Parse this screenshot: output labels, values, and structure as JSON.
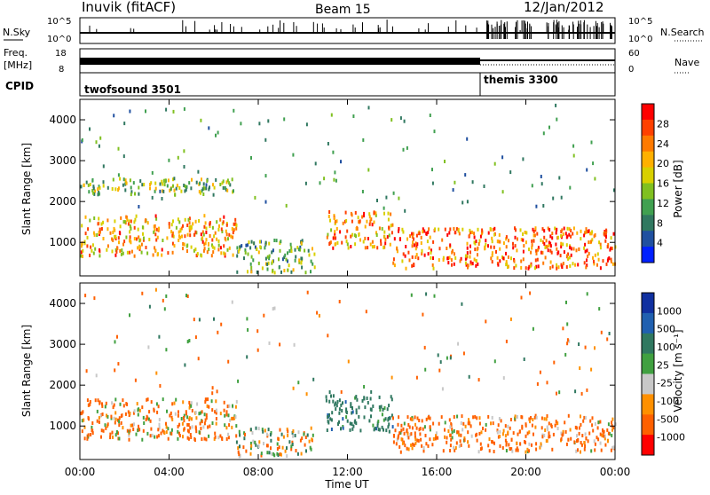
{
  "header": {
    "station": "Inuvik (fitACF)",
    "beam": "Beam 15",
    "date": "12/Jan/2012"
  },
  "strips": {
    "nsky": {
      "left_label": "N.Sky",
      "right_label": "N.Search",
      "left_ticks": [
        "10^5",
        "10^0"
      ],
      "right_ticks": [
        "10^5",
        "10^0"
      ]
    },
    "freq": {
      "left_label": "Freq.",
      "unit": "[MHz]",
      "right_label": "Nave",
      "left_ticks": [
        "18",
        "8"
      ],
      "right_ticks": [
        "60",
        "0"
      ]
    },
    "cpid": {
      "label": "CPID",
      "segments": [
        {
          "name": "twofsound 3501",
          "start_hour": 0,
          "end_hour": 18
        },
        {
          "name": "themis 3300",
          "start_hour": 18,
          "end_hour": 24
        }
      ]
    }
  },
  "colorbars": {
    "power": {
      "label": "Power [dB]",
      "ticks": [
        "28",
        "24",
        "20",
        "16",
        "12",
        "8",
        "4"
      ],
      "colors": [
        "#ff0000",
        "#ff4000",
        "#ff7a00",
        "#ffb000",
        "#d8d000",
        "#80c020",
        "#40a050",
        "#307860",
        "#2050a0",
        "#0020ff"
      ]
    },
    "velocity": {
      "label": "Velocity [m s⁻¹]",
      "ticks": [
        "1000",
        "500",
        "100",
        "25",
        "-25",
        "-100",
        "-500",
        "-1000"
      ],
      "colors": [
        "#1030a0",
        "#2060b0",
        "#307860",
        "#40a040",
        "#c8c8c8",
        "#ff9000",
        "#ff6000",
        "#ff0000"
      ]
    }
  },
  "chart_data": [
    {
      "type": "heatmap",
      "title": "",
      "xlabel": "Time UT",
      "ylabel": "Slant Range [km]",
      "x_ticks": [
        "00:00",
        "04:00",
        "08:00",
        "12:00",
        "16:00",
        "20:00",
        "00:00"
      ],
      "y_ticks": [
        "1000",
        "2000",
        "3000",
        "4000"
      ],
      "xlim_hours": [
        0,
        24
      ],
      "ylim_km": [
        180,
        4500
      ],
      "colorbar": "Power [dB]",
      "scatter_regions": [
        {
          "t0": 0.0,
          "t1": 7.0,
          "r0": 700,
          "r1": 1700,
          "value_db": 22
        },
        {
          "t0": 0.0,
          "t1": 7.0,
          "r0": 2200,
          "r1": 2600,
          "value_db": 14
        },
        {
          "t0": 7.0,
          "t1": 10.5,
          "r0": 300,
          "r1": 1100,
          "value_db": 12
        },
        {
          "t0": 11.0,
          "t1": 14.0,
          "r0": 900,
          "r1": 1800,
          "value_db": 24
        },
        {
          "t0": 14.0,
          "t1": 24.0,
          "r0": 400,
          "r1": 1400,
          "value_db": 26
        }
      ]
    },
    {
      "type": "heatmap",
      "title": "",
      "xlabel": "Time UT",
      "ylabel": "Slant Range [km]",
      "x_ticks": [
        "00:00",
        "04:00",
        "08:00",
        "12:00",
        "16:00",
        "20:00",
        "00:00"
      ],
      "y_ticks": [
        "1000",
        "2000",
        "3000",
        "4000"
      ],
      "xlim_hours": [
        0,
        24
      ],
      "ylim_km": [
        180,
        4500
      ],
      "colorbar": "Velocity [m s⁻¹]",
      "scatter_regions": [
        {
          "t0": 0.0,
          "t1": 7.0,
          "r0": 700,
          "r1": 1700,
          "value_ms": -150
        },
        {
          "t0": 7.0,
          "t1": 10.5,
          "r0": 300,
          "r1": 1000,
          "value_ms": 20
        },
        {
          "t0": 11.0,
          "t1": 14.0,
          "r0": 900,
          "r1": 1800,
          "value_ms": 300
        },
        {
          "t0": 14.0,
          "t1": 24.0,
          "r0": 400,
          "r1": 1300,
          "value_ms": -200
        }
      ]
    }
  ]
}
